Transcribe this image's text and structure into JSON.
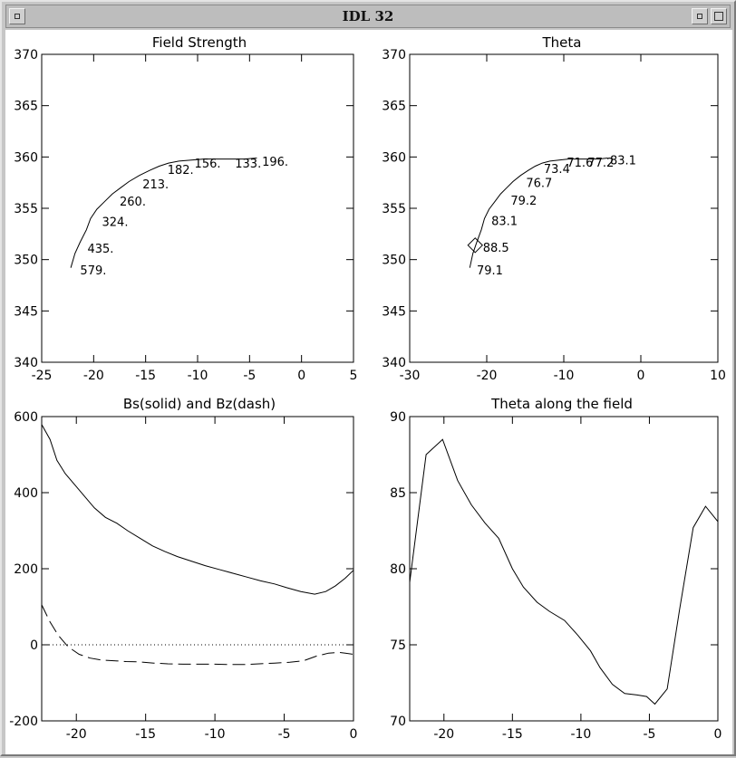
{
  "window": {
    "title": "IDL 32",
    "menu_icon": "window-menu-icon",
    "minimize_icon": "minimize-icon",
    "maximize_icon": "maximize-icon"
  },
  "chart_data": [
    {
      "type": "line",
      "title": "Field Strength",
      "xlim": [
        -25,
        5
      ],
      "ylim": [
        340,
        370
      ],
      "xticks": [
        -25,
        -20,
        -15,
        -10,
        -5,
        0,
        5
      ],
      "yticks": [
        340,
        345,
        350,
        355,
        360,
        365,
        370
      ],
      "series": [
        {
          "x": [
            -22.2,
            -21.8,
            -21.3,
            -20.7,
            -20.3,
            -19.7,
            -19.0,
            -18.2,
            -17.4,
            -16.6,
            -15.6,
            -14.6,
            -13.7,
            -12.8,
            -11.8,
            -10.6,
            -9.4,
            -8.2,
            -6.9,
            -5.5,
            -4.3
          ],
          "y": [
            349.2,
            350.6,
            351.7,
            352.9,
            354.0,
            354.9,
            355.6,
            356.4,
            357.0,
            357.6,
            358.2,
            358.7,
            359.1,
            359.4,
            359.6,
            359.7,
            359.8,
            359.8,
            359.8,
            359.8,
            359.9
          ]
        }
      ],
      "labels": [
        {
          "x": -21.3,
          "y": 349.0,
          "text": "579."
        },
        {
          "x": -20.6,
          "y": 351.1,
          "text": "435."
        },
        {
          "x": -19.2,
          "y": 353.7,
          "text": "324."
        },
        {
          "x": -17.5,
          "y": 355.7,
          "text": "260."
        },
        {
          "x": -15.3,
          "y": 357.4,
          "text": "213."
        },
        {
          "x": -12.9,
          "y": 358.8,
          "text": "182."
        },
        {
          "x": -10.3,
          "y": 359.4,
          "text": "156."
        },
        {
          "x": -6.4,
          "y": 359.4,
          "text": "133."
        },
        {
          "x": -3.8,
          "y": 359.6,
          "text": "196."
        }
      ]
    },
    {
      "type": "line",
      "title": "Theta",
      "xlim": [
        -30,
        10
      ],
      "ylim": [
        340,
        370
      ],
      "xticks": [
        -30,
        -20,
        -10,
        0,
        10
      ],
      "yticks": [
        340,
        345,
        350,
        355,
        360,
        365,
        370
      ],
      "series": [
        {
          "x": [
            -22.2,
            -21.8,
            -21.3,
            -20.7,
            -20.3,
            -19.7,
            -19.0,
            -18.2,
            -17.4,
            -16.6,
            -15.6,
            -14.6,
            -13.7,
            -12.8,
            -11.8,
            -10.6,
            -9.4,
            -8.2,
            -6.9,
            -5.5,
            -4.3
          ],
          "y": [
            349.2,
            350.6,
            351.7,
            352.9,
            354.0,
            354.9,
            355.6,
            356.4,
            357.0,
            357.6,
            358.2,
            358.7,
            359.1,
            359.4,
            359.6,
            359.7,
            359.8,
            359.8,
            359.8,
            359.8,
            359.9
          ]
        }
      ],
      "marker": {
        "shape": "diamond",
        "x": -21.5,
        "y": 351.4
      },
      "labels": [
        {
          "x": -21.3,
          "y": 349.0,
          "text": "79.1"
        },
        {
          "x": -20.5,
          "y": 351.2,
          "text": "88.5"
        },
        {
          "x": -19.4,
          "y": 353.8,
          "text": "83.1"
        },
        {
          "x": -16.9,
          "y": 355.8,
          "text": "79.2"
        },
        {
          "x": -14.9,
          "y": 357.5,
          "text": "76.7"
        },
        {
          "x": -12.6,
          "y": 358.9,
          "text": "73.4"
        },
        {
          "x": -9.6,
          "y": 359.5,
          "text": "71.6"
        },
        {
          "x": -6.9,
          "y": 359.5,
          "text": "77.2"
        },
        {
          "x": -4.0,
          "y": 359.7,
          "text": "83.1"
        }
      ]
    },
    {
      "type": "line",
      "title": "Bs(solid) and Bz(dash)",
      "xlim": [
        -22.5,
        0
      ],
      "ylim": [
        -200,
        600
      ],
      "xticks": [
        -20,
        -15,
        -10,
        -5,
        0
      ],
      "yticks": [
        -200,
        0,
        200,
        400,
        600
      ],
      "series": [
        {
          "style": "solid",
          "x": [
            -22.5,
            -21.9,
            -21.4,
            -20.8,
            -20.1,
            -19.4,
            -18.7,
            -17.9,
            -17.1,
            -16.3,
            -15.4,
            -14.5,
            -13.6,
            -12.7,
            -11.7,
            -10.7,
            -9.7,
            -8.7,
            -7.7,
            -6.7,
            -5.7,
            -4.8,
            -3.8,
            -2.8,
            -2.0,
            -1.3,
            -0.6,
            0.0
          ],
          "y": [
            579,
            540,
            485,
            450,
            420,
            390,
            360,
            335,
            320,
            300,
            280,
            260,
            245,
            232,
            220,
            208,
            198,
            188,
            178,
            168,
            160,
            150,
            140,
            133,
            140,
            155,
            175,
            196
          ]
        },
        {
          "style": "dash",
          "x": [
            -22.5,
            -21.9,
            -21.3,
            -20.6,
            -19.8,
            -19.0,
            -18.2,
            -17.3,
            -16.4,
            -15.4,
            -14.4,
            -13.4,
            -12.3,
            -11.2,
            -10.1,
            -9.0,
            -7.9,
            -6.8,
            -5.7,
            -4.6,
            -3.6,
            -2.7,
            -1.8,
            -1.0,
            0.0
          ],
          "y": [
            105,
            60,
            25,
            -5,
            -25,
            -35,
            -40,
            -42,
            -44,
            -45,
            -48,
            -50,
            -51,
            -51,
            -51,
            -52,
            -52,
            -50,
            -48,
            -46,
            -42,
            -30,
            -22,
            -20,
            -25
          ]
        }
      ],
      "zero_line": "dotted"
    },
    {
      "type": "line",
      "title": "Theta along the field",
      "xlim": [
        -22.5,
        0
      ],
      "ylim": [
        70,
        90
      ],
      "xticks": [
        -20,
        -15,
        -10,
        -5,
        0
      ],
      "yticks": [
        70,
        75,
        80,
        85,
        90
      ],
      "series": [
        {
          "x": [
            -22.5,
            -21.3,
            -20.1,
            -19.0,
            -18.0,
            -17.0,
            -16.0,
            -15.0,
            -14.2,
            -13.2,
            -12.3,
            -11.2,
            -10.2,
            -9.3,
            -8.6,
            -7.7,
            -6.8,
            -5.9,
            -5.2,
            -4.6,
            -3.7,
            -2.8,
            -1.8,
            -0.9,
            0.0
          ],
          "y": [
            79.1,
            87.5,
            88.5,
            85.8,
            84.2,
            83.0,
            82.0,
            80.0,
            78.8,
            77.8,
            77.2,
            76.6,
            75.6,
            74.6,
            73.5,
            72.4,
            71.8,
            71.7,
            71.6,
            71.1,
            72.1,
            77.3,
            82.7,
            84.1,
            83.1
          ]
        }
      ]
    }
  ]
}
